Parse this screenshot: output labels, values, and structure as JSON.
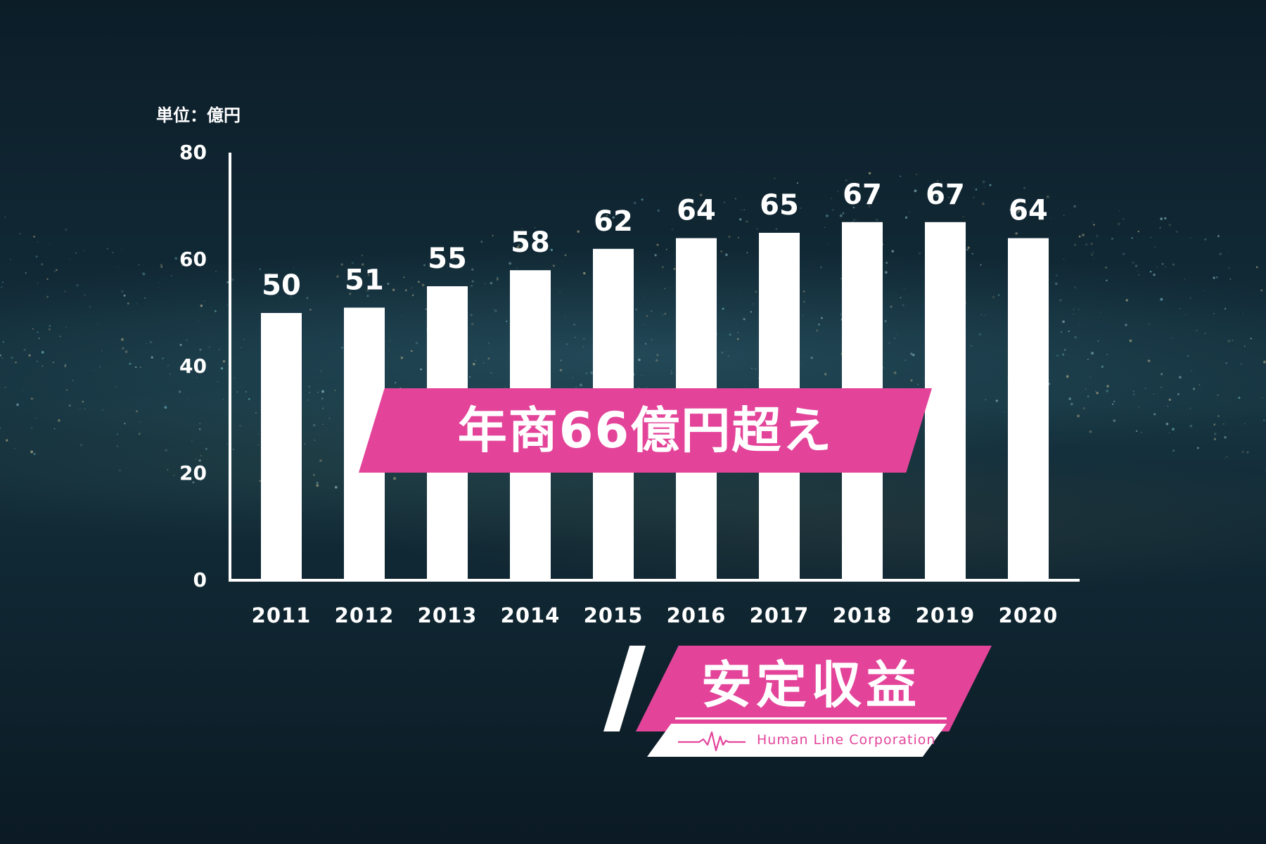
{
  "unit_label": "単位：億円",
  "headline": "年商66億円超え",
  "logo": {
    "title": "安定収益",
    "company": "Human Line Corporation",
    "icon": "heartbeat-wave-icon"
  },
  "colors": {
    "accent": "#e3449a",
    "bar": "#ffffff",
    "background": "#0e1e2a"
  },
  "chart_data": {
    "type": "bar",
    "title": "",
    "xlabel": "",
    "ylabel": "",
    "unit": "億円",
    "categories": [
      "2011",
      "2012",
      "2013",
      "2014",
      "2015",
      "2016",
      "2017",
      "2018",
      "2019",
      "2020"
    ],
    "values": [
      50,
      51,
      55,
      58,
      62,
      64,
      65,
      67,
      67,
      64
    ],
    "data_labels": [
      "50",
      "51",
      "55",
      "58",
      "62",
      "64",
      "65",
      "67",
      "67",
      "64"
    ],
    "y_ticks": [
      0,
      20,
      40,
      60,
      80
    ],
    "ylim": [
      0,
      80
    ],
    "grid": false,
    "legend": "none"
  }
}
